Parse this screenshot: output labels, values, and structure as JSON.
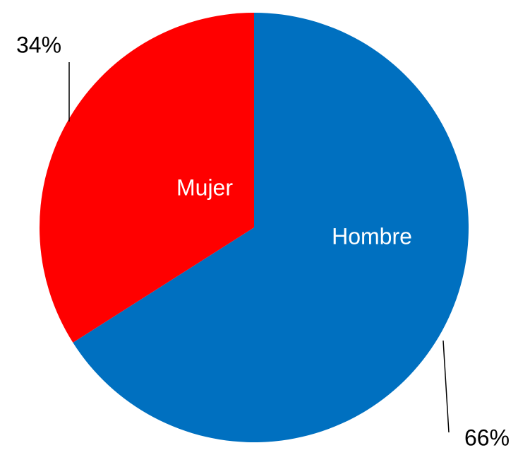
{
  "chart_data": {
    "type": "pie",
    "categories": [
      "Hombre",
      "Mujer"
    ],
    "values": [
      66,
      34
    ],
    "value_labels": [
      "66%",
      "34%"
    ],
    "colors": [
      "#0070c0",
      "#ff0000"
    ]
  }
}
